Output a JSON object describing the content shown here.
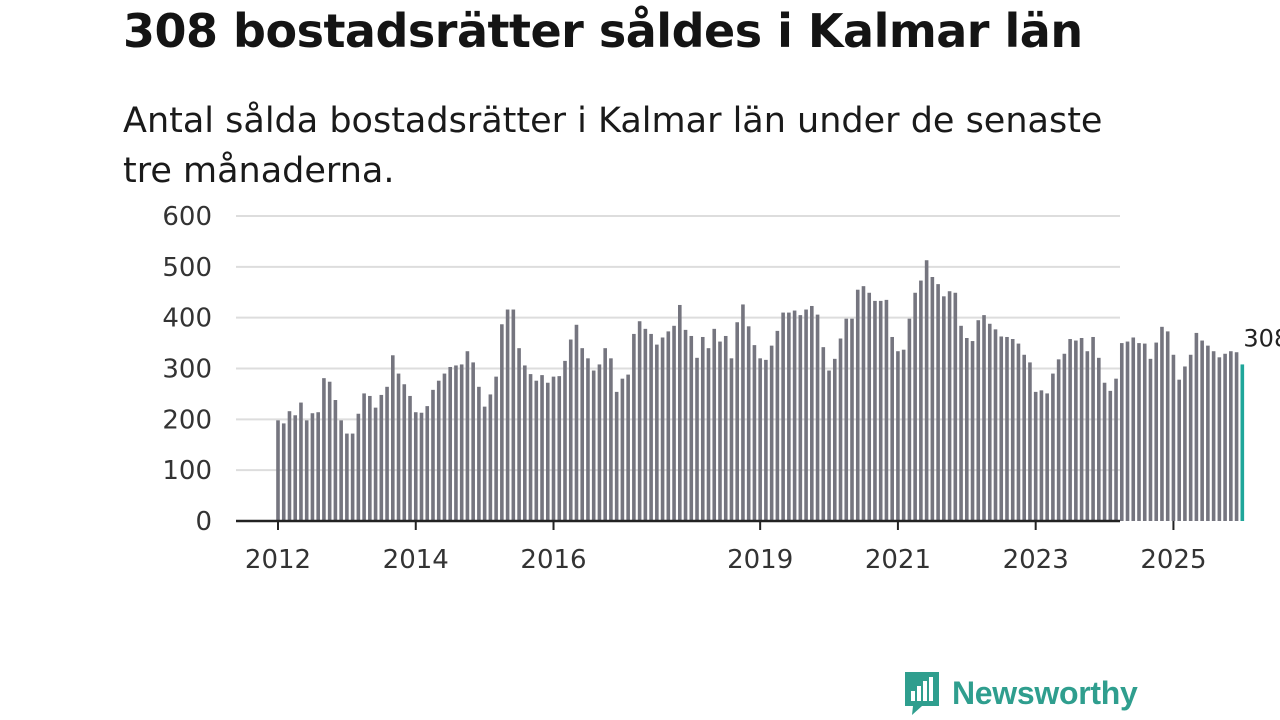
{
  "headline": "308 bostadsrätter såldes i Kalmar län",
  "subtitle": "Antal sålda bostadsrätter i Kalmar län under de senaste tre månaderna.",
  "brand": {
    "name": "Newsworthy",
    "color": "#2f9e8e"
  },
  "colors": {
    "bar": "#75757f",
    "highlight": "#1fa69a",
    "grid": "#dddddd",
    "axis": "#222222"
  },
  "chart_data": {
    "type": "bar",
    "title": "308 bostadsrätter såldes i Kalmar län",
    "xlabel": "",
    "ylabel": "",
    "ylim": [
      0,
      600
    ],
    "y_ticks": [
      0,
      100,
      200,
      300,
      400,
      500,
      600
    ],
    "x_ticks": [
      {
        "label": "2012",
        "index": 0
      },
      {
        "label": "2014",
        "index": 24
      },
      {
        "label": "2016",
        "index": 48
      },
      {
        "label": "2019",
        "index": 84
      },
      {
        "label": "2021",
        "index": 108
      },
      {
        "label": "2023",
        "index": 132
      },
      {
        "label": "2025",
        "index": 156
      }
    ],
    "start_period": "2012-01",
    "frequency": "monthly",
    "highlight_last": true,
    "end_label": "308",
    "values": [
      198,
      192,
      216,
      208,
      233,
      198,
      212,
      214,
      281,
      274,
      238,
      198,
      172,
      172,
      211,
      251,
      246,
      223,
      248,
      264,
      326,
      290,
      269,
      246,
      214,
      213,
      226,
      258,
      276,
      290,
      303,
      306,
      308,
      334,
      312,
      264,
      225,
      249,
      284,
      387,
      416,
      416,
      340,
      306,
      289,
      276,
      287,
      272,
      284,
      285,
      315,
      357,
      386,
      340,
      320,
      296,
      308,
      340,
      320,
      254,
      280,
      288,
      368,
      393,
      378,
      368,
      347,
      361,
      373,
      384,
      425,
      376,
      364,
      321,
      362,
      340,
      378,
      353,
      364,
      320,
      391,
      426,
      383,
      346,
      320,
      317,
      345,
      374,
      410,
      410,
      414,
      405,
      416,
      423,
      406,
      342,
      296,
      319,
      359,
      398,
      398,
      455,
      462,
      449,
      433,
      433,
      435,
      362,
      334,
      337,
      398,
      449,
      473,
      513,
      480,
      466,
      442,
      452,
      449,
      384,
      360,
      354,
      395,
      405,
      388,
      377,
      363,
      362,
      358,
      349,
      327,
      312,
      254,
      257,
      251,
      290,
      318,
      329,
      358,
      355,
      360,
      334,
      362,
      321,
      272,
      256,
      280,
      350,
      353,
      361,
      350,
      349,
      319,
      351,
      382,
      373,
      327,
      278,
      304,
      327,
      370,
      355,
      345,
      334,
      322,
      329,
      334,
      332,
      308
    ]
  }
}
